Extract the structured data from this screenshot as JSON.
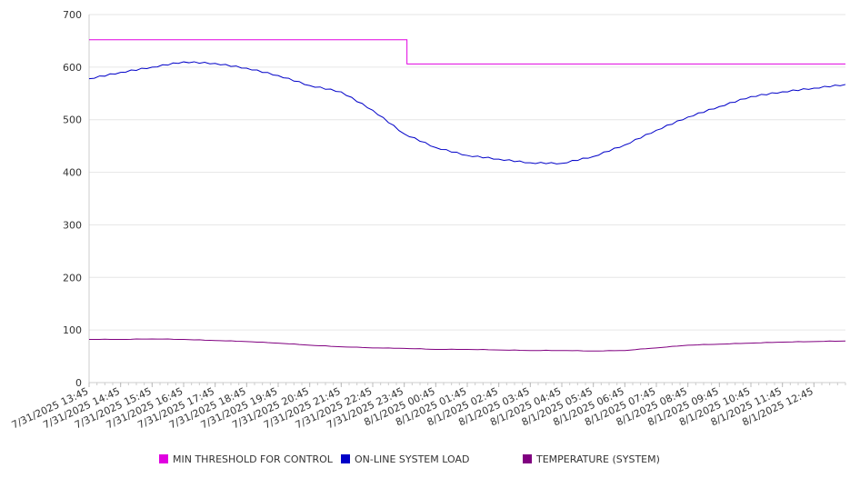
{
  "chart_data": {
    "type": "line",
    "y_ticks": [
      0,
      100,
      200,
      300,
      400,
      500,
      600,
      700
    ],
    "ylim": [
      0,
      700
    ],
    "grid": true,
    "legend_position": "bottom",
    "x_tick_labels": [
      "7/31/2025 13:45",
      "7/31/2025 14:45",
      "7/31/2025 15:45",
      "7/31/2025 16:45",
      "7/31/2025 17:45",
      "7/31/2025 18:45",
      "7/31/2025 19:45",
      "7/31/2025 20:45",
      "7/31/2025 21:45",
      "7/31/2025 22:45",
      "7/31/2025 23:45",
      "8/1/2025 00:45",
      "8/1/2025 01:45",
      "8/1/2025 02:45",
      "8/1/2025 03:45",
      "8/1/2025 04:45",
      "8/1/2025 05:45",
      "8/1/2025 06:45",
      "8/1/2025 07:45",
      "8/1/2025 08:45",
      "8/1/2025 09:45",
      "8/1/2025 10:45",
      "8/1/2025 11:45",
      "8/1/2025 12:45"
    ],
    "x": [
      "7/31/2025 13:45",
      "7/31/2025 14:45",
      "7/31/2025 15:45",
      "7/31/2025 16:45",
      "7/31/2025 17:45",
      "7/31/2025 18:45",
      "7/31/2025 19:45",
      "7/31/2025 20:45",
      "7/31/2025 21:45",
      "7/31/2025 22:45",
      "7/31/2025 23:45",
      "8/1/2025 00:45",
      "8/1/2025 01:45",
      "8/1/2025 02:45",
      "8/1/2025 03:45",
      "8/1/2025 04:45",
      "8/1/2025 05:45",
      "8/1/2025 06:45",
      "8/1/2025 07:45",
      "8/1/2025 08:45",
      "8/1/2025 09:45",
      "8/1/2025 10:45",
      "8/1/2025 11:45",
      "8/1/2025 12:45",
      "8/1/2025 13:45"
    ],
    "series": [
      {
        "name": "MIN THRESHOLD FOR CONTROL",
        "color": "#e000e0",
        "values": [
          652,
          652,
          652,
          652,
          652,
          652,
          652,
          652,
          652,
          652,
          652,
          606,
          606,
          606,
          606,
          606,
          606,
          606,
          606,
          606,
          606,
          606,
          606,
          606,
          606
        ],
        "step": true
      },
      {
        "name": "ON-LINE SYSTEM LOAD",
        "color": "#0000c8",
        "values": [
          578,
          590,
          600,
          610,
          607,
          598,
          584,
          565,
          553,
          518,
          473,
          447,
          432,
          425,
          418,
          417,
          430,
          452,
          480,
          505,
          525,
          544,
          553,
          560,
          567
        ]
      },
      {
        "name": "TEMPERATURE (SYSTEM)",
        "color": "#800080",
        "values": [
          82,
          82,
          83,
          82,
          80,
          78,
          75,
          71,
          68,
          66,
          65,
          63,
          63,
          62,
          61,
          61,
          60,
          61,
          66,
          71,
          73,
          75,
          77,
          78,
          79
        ]
      }
    ]
  }
}
